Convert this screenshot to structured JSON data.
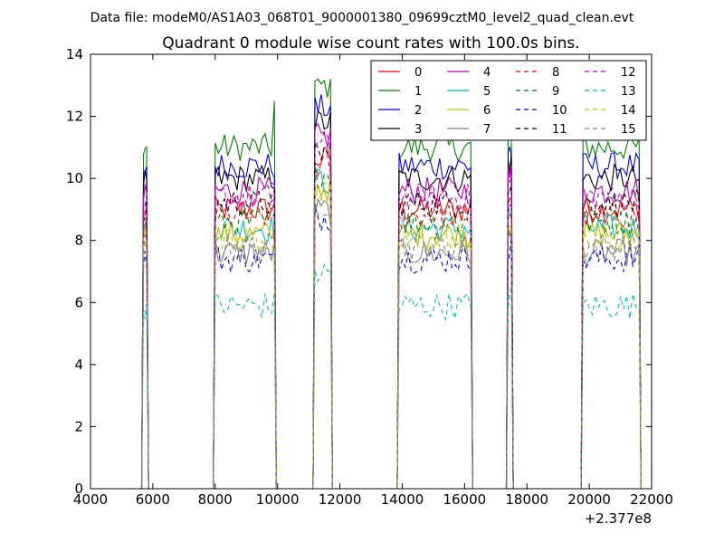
{
  "suptitle": "Data file: modeM0/AS1A03_068T01_9000001380_09699cztM0_level2_quad_clean.evt",
  "chart_data": {
    "type": "line",
    "title": "Quadrant 0 module wise count rates with 100.0s bins.",
    "xlabel": "",
    "ylabel": "",
    "x_offset_label": "+2.377e8",
    "xlim": [
      4000,
      22000
    ],
    "ylim": [
      0,
      14
    ],
    "x_ticks": [
      4000,
      6000,
      8000,
      10000,
      12000,
      14000,
      16000,
      18000,
      20000,
      22000
    ],
    "y_ticks": [
      0,
      2,
      4,
      6,
      8,
      10,
      12,
      14
    ],
    "legend_position": "top-right",
    "legend_columns": 4,
    "grid": false,
    "segments": [
      {
        "start": 5700,
        "end": 5800
      },
      {
        "start": 8000,
        "end": 9900
      },
      {
        "start": 11200,
        "end": 11700
      },
      {
        "start": 13900,
        "end": 16200
      },
      {
        "start": 17400,
        "end": 17500
      },
      {
        "start": 19800,
        "end": 21600
      }
    ],
    "series": [
      {
        "name": "0",
        "color": "#ff0000",
        "dashed": false,
        "level": 9.0
      },
      {
        "name": "1",
        "color": "#008000",
        "dashed": false,
        "level": 11.0
      },
      {
        "name": "2",
        "color": "#0000ff",
        "dashed": false,
        "level": 10.4
      },
      {
        "name": "3",
        "color": "#000000",
        "dashed": false,
        "level": 10.0
      },
      {
        "name": "4",
        "color": "#bf00bf",
        "dashed": false,
        "level": 9.6
      },
      {
        "name": "5",
        "color": "#00bfbf",
        "dashed": false,
        "level": 8.4
      },
      {
        "name": "6",
        "color": "#bfbf00",
        "dashed": false,
        "level": 8.2
      },
      {
        "name": "7",
        "color": "#808080",
        "dashed": false,
        "level": 7.6
      },
      {
        "name": "8",
        "color": "#ff0000",
        "dashed": true,
        "level": 8.8
      },
      {
        "name": "9",
        "color": "#008000",
        "dashed": true,
        "level": 8.6
      },
      {
        "name": "10",
        "color": "#0000ff",
        "dashed": true,
        "level": 7.4
      },
      {
        "name": "11",
        "color": "#000000",
        "dashed": true,
        "level": 9.2
      },
      {
        "name": "12",
        "color": "#bf00bf",
        "dashed": true,
        "level": 9.4
      },
      {
        "name": "13",
        "color": "#00bfbf",
        "dashed": true,
        "level": 5.9
      },
      {
        "name": "14",
        "color": "#bfbf00",
        "dashed": true,
        "level": 8.0
      },
      {
        "name": "15",
        "color": "#808080",
        "dashed": true,
        "level": 7.8
      }
    ]
  }
}
